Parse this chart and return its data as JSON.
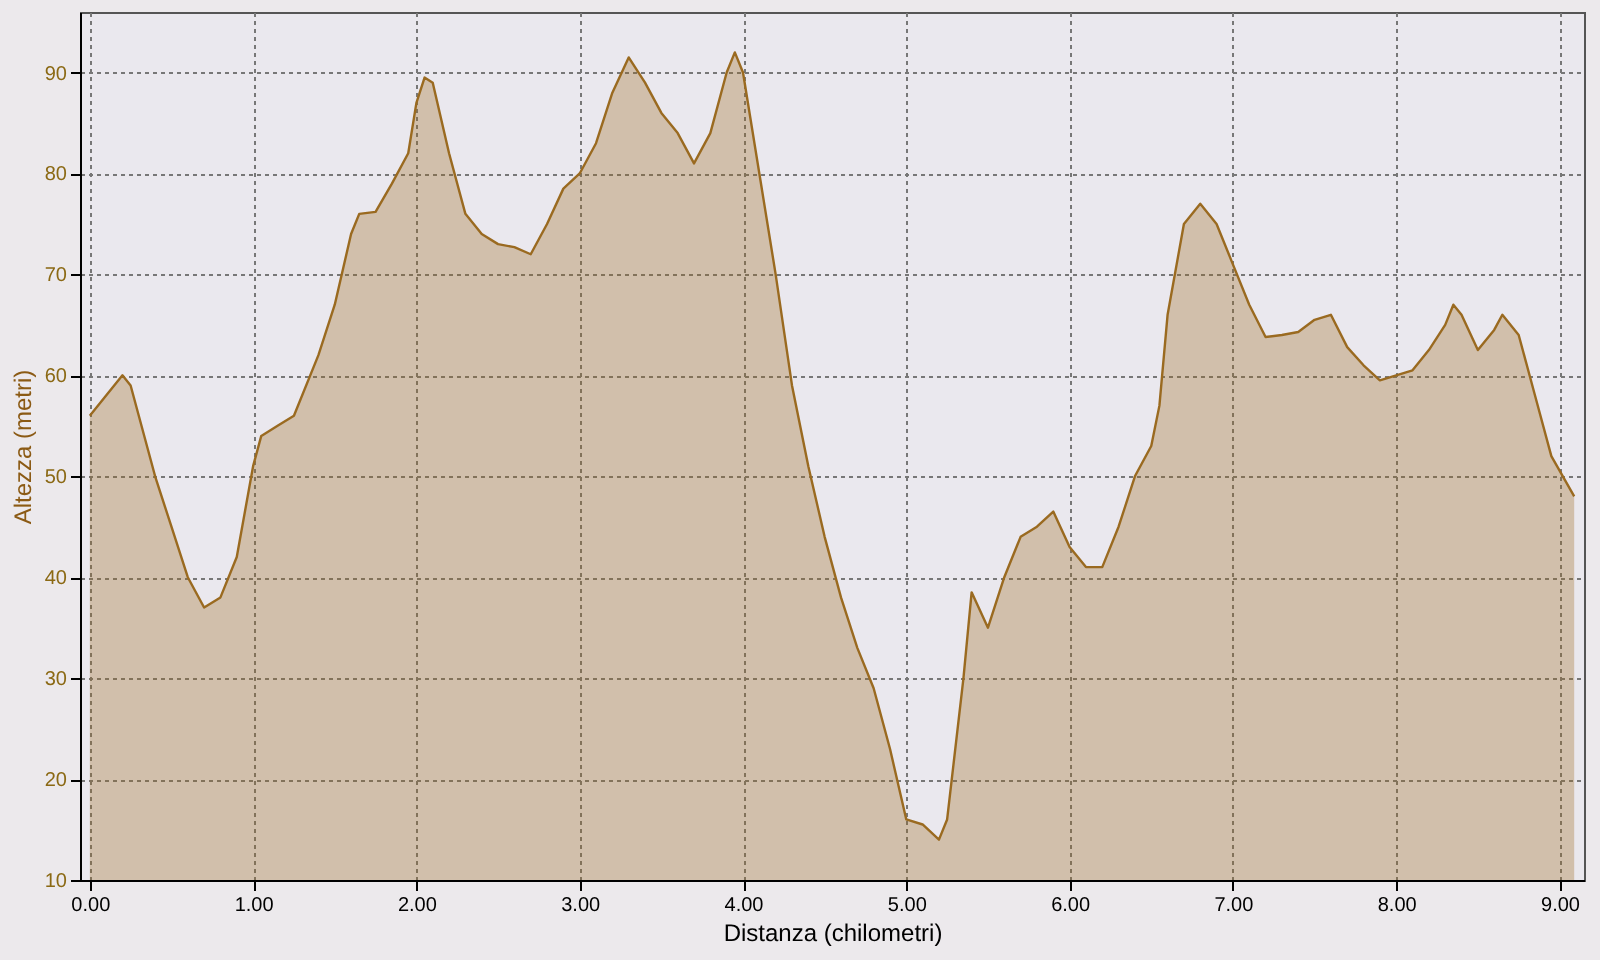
{
  "chart_data": {
    "type": "area",
    "xlabel": "Distanza (chilometri)",
    "ylabel": "Altezza (metri)",
    "xlim": [
      -0.06,
      9.15
    ],
    "ylim": [
      10,
      96
    ],
    "xticks": [
      {
        "value": 0,
        "label": "0.00"
      },
      {
        "value": 1,
        "label": "1.00"
      },
      {
        "value": 2,
        "label": "2.00"
      },
      {
        "value": 3,
        "label": "3.00"
      },
      {
        "value": 4,
        "label": "4.00"
      },
      {
        "value": 5,
        "label": "5.00"
      },
      {
        "value": 6,
        "label": "6.00"
      },
      {
        "value": 7,
        "label": "7.00"
      },
      {
        "value": 8,
        "label": "8.00"
      },
      {
        "value": 9,
        "label": "9.00"
      }
    ],
    "yticks": [
      10,
      20,
      30,
      40,
      50,
      60,
      70,
      80,
      90
    ],
    "grid": true,
    "x": [
      0,
      0.1,
      0.2,
      0.25,
      0.3,
      0.4,
      0.5,
      0.6,
      0.7,
      0.8,
      0.9,
      1.0,
      1.05,
      1.15,
      1.25,
      1.4,
      1.5,
      1.6,
      1.65,
      1.75,
      1.85,
      1.95,
      2.0,
      2.05,
      2.1,
      2.2,
      2.3,
      2.4,
      2.5,
      2.6,
      2.7,
      2.8,
      2.9,
      3.0,
      3.1,
      3.2,
      3.3,
      3.4,
      3.5,
      3.6,
      3.7,
      3.8,
      3.9,
      3.95,
      4.0,
      4.1,
      4.2,
      4.3,
      4.4,
      4.5,
      4.6,
      4.7,
      4.8,
      4.9,
      5.0,
      5.1,
      5.2,
      5.25,
      5.35,
      5.4,
      5.5,
      5.6,
      5.7,
      5.8,
      5.9,
      6.0,
      6.1,
      6.2,
      6.3,
      6.4,
      6.5,
      6.55,
      6.6,
      6.7,
      6.8,
      6.9,
      7.0,
      7.1,
      7.2,
      7.3,
      7.4,
      7.5,
      7.6,
      7.7,
      7.8,
      7.9,
      8.0,
      8.1,
      8.2,
      8.3,
      8.35,
      8.4,
      8.5,
      8.6,
      8.65,
      8.75,
      8.85,
      8.95,
      9.09
    ],
    "series": [
      {
        "color": "#9a6a20",
        "values": [
          56,
          58,
          60,
          59,
          56,
          50,
          45,
          40,
          37,
          38,
          42,
          51,
          54,
          55,
          56,
          62,
          67,
          74,
          76,
          76.2,
          79,
          82,
          87,
          89.5,
          89,
          82,
          76,
          74,
          73,
          72.7,
          72,
          75,
          78.5,
          80,
          83,
          88,
          91.5,
          89,
          86,
          84,
          81,
          84,
          90,
          92,
          90,
          80,
          70,
          59,
          51,
          44,
          38,
          33,
          29,
          23,
          16,
          15.5,
          14,
          16,
          30,
          38.5,
          35,
          40,
          44,
          45,
          46.5,
          43,
          41,
          41,
          45,
          50,
          53,
          57,
          66,
          75,
          77,
          75,
          71,
          67,
          63.8,
          64,
          64.3,
          65.5,
          66,
          62.8,
          61,
          59.5,
          60,
          60.5,
          62.5,
          65,
          67,
          66,
          62.5,
          64.5,
          66,
          64,
          58,
          52,
          48
        ]
      }
    ]
  }
}
